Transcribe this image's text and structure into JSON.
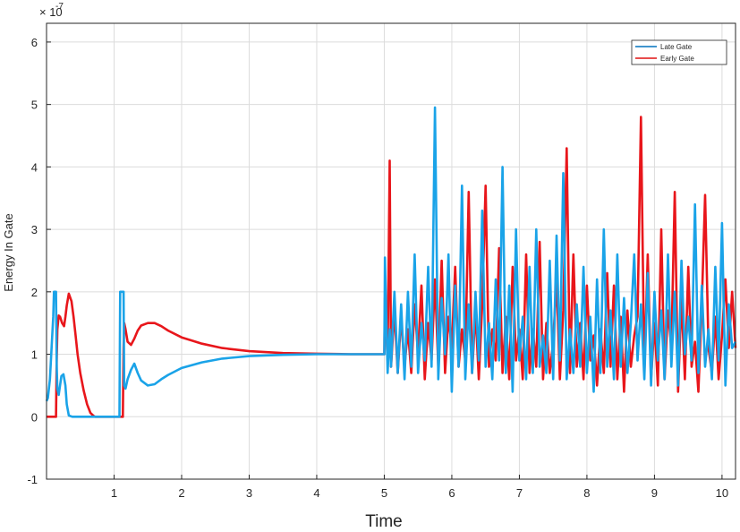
{
  "chart_data": {
    "type": "line",
    "title": "",
    "xlabel": "Time",
    "ylabel": "Energy In Gate",
    "exponent_base": "× 10",
    "exponent_power": "-7",
    "xlim": [
      0,
      10.2
    ],
    "ylim": [
      -1,
      6.3
    ],
    "xticks": [
      1,
      2,
      3,
      4,
      5,
      6,
      7,
      8,
      9,
      10
    ],
    "yticks": [
      -1,
      0,
      1,
      2,
      3,
      4,
      5,
      6
    ],
    "grid": true,
    "legend_position": "top-right",
    "legend": [
      {
        "name": "Late Gate",
        "color": "#0072BD"
      },
      {
        "name": "Early Gate",
        "color": "#E01010"
      }
    ],
    "series": [
      {
        "name": "Early Gate",
        "color": "#E8161B",
        "x": [
          0,
          0.14,
          0.15,
          0.16,
          0.18,
          0.2,
          0.23,
          0.26,
          0.28,
          0.3,
          0.33,
          0.37,
          0.4,
          0.43,
          0.46,
          0.5,
          0.55,
          0.6,
          0.65,
          0.7,
          0.72,
          0.74,
          1.13,
          1.14,
          1.15,
          1.17,
          1.2,
          1.25,
          1.3,
          1.35,
          1.4,
          1.5,
          1.6,
          1.7,
          1.8,
          2.0,
          2.3,
          2.6,
          3.0,
          3.5,
          4.0,
          4.5,
          5.0,
          5.01,
          5.05,
          5.08,
          5.1,
          5.15,
          5.2,
          5.25,
          5.3,
          5.35,
          5.4,
          5.45,
          5.5,
          5.55,
          5.6,
          5.65,
          5.7,
          5.75,
          5.8,
          5.85,
          5.9,
          5.95,
          6.0,
          6.05,
          6.1,
          6.15,
          6.2,
          6.25,
          6.3,
          6.35,
          6.4,
          6.45,
          6.5,
          6.55,
          6.6,
          6.65,
          6.7,
          6.75,
          6.8,
          6.85,
          6.9,
          6.95,
          7.0,
          7.05,
          7.1,
          7.15,
          7.2,
          7.25,
          7.3,
          7.35,
          7.4,
          7.45,
          7.5,
          7.55,
          7.6,
          7.65,
          7.7,
          7.75,
          7.8,
          7.85,
          7.9,
          7.95,
          8.0,
          8.05,
          8.1,
          8.15,
          8.2,
          8.25,
          8.3,
          8.35,
          8.4,
          8.45,
          8.5,
          8.55,
          8.6,
          8.65,
          8.7,
          8.75,
          8.8,
          8.85,
          8.9,
          8.95,
          9.0,
          9.05,
          9.1,
          9.15,
          9.2,
          9.25,
          9.3,
          9.35,
          9.4,
          9.45,
          9.5,
          9.55,
          9.6,
          9.65,
          9.7,
          9.75,
          9.8,
          9.85,
          9.9,
          9.95,
          10.0,
          10.05,
          10.1,
          10.15,
          10.2
        ],
        "y": [
          0,
          0,
          0.85,
          1.4,
          1.62,
          1.6,
          1.5,
          1.45,
          1.6,
          1.78,
          1.97,
          1.85,
          1.6,
          1.3,
          1.0,
          0.7,
          0.42,
          0.2,
          0.06,
          0.01,
          0,
          0,
          0,
          1.1,
          1.5,
          1.4,
          1.2,
          1.15,
          1.25,
          1.38,
          1.46,
          1.5,
          1.5,
          1.45,
          1.38,
          1.27,
          1.17,
          1.1,
          1.05,
          1.02,
          1.01,
          1.0,
          1.0,
          1.9,
          0.9,
          4.1,
          0.8,
          1.7,
          0.7,
          1.6,
          0.8,
          1.4,
          0.7,
          1.8,
          1.0,
          2.1,
          0.6,
          1.5,
          0.9,
          2.2,
          0.8,
          2.5,
          0.7,
          1.6,
          1.1,
          2.4,
          0.8,
          1.4,
          0.9,
          3.6,
          0.7,
          1.7,
          0.6,
          1.8,
          3.7,
          0.8,
          1.4,
          0.9,
          2.7,
          0.7,
          1.6,
          0.6,
          2.4,
          0.9,
          1.4,
          0.6,
          2.6,
          0.7,
          1.4,
          0.8,
          2.8,
          0.6,
          1.5,
          0.7,
          1.2,
          2.2,
          0.6,
          1.7,
          4.3,
          0.7,
          2.6,
          0.8,
          1.5,
          0.6,
          2.1,
          0.9,
          1.3,
          0.5,
          1.4,
          0.7,
          2.3,
          0.8,
          2.1,
          0.6,
          1.6,
          0.4,
          1.7,
          0.8,
          1.3,
          1.6,
          4.8,
          0.7,
          2.6,
          0.6,
          1.5,
          0.5,
          3.0,
          0.6,
          1.7,
          1.1,
          3.6,
          0.4,
          1.9,
          0.6,
          2.4,
          0.8,
          1.2,
          0.4,
          1.8,
          3.55,
          1.1,
          0.7,
          1.6,
          0.6,
          1.3,
          2.2,
          1.1,
          2.0,
          1.1
        ]
      },
      {
        "name": "Late Gate",
        "color": "#1AA3E8",
        "x": [
          0,
          0.02,
          0.05,
          0.08,
          0.1,
          0.11,
          0.12,
          0.14,
          0.15,
          0.16,
          0.18,
          0.2,
          0.22,
          0.25,
          0.28,
          0.3,
          0.33,
          0.38,
          0.42,
          1.08,
          1.09,
          1.1,
          1.12,
          1.14,
          1.15,
          1.17,
          1.2,
          1.25,
          1.3,
          1.35,
          1.4,
          1.5,
          1.6,
          1.7,
          1.8,
          2.0,
          2.3,
          2.6,
          3.0,
          3.5,
          4.0,
          4.5,
          5.0,
          5.01,
          5.05,
          5.08,
          5.1,
          5.15,
          5.2,
          5.25,
          5.3,
          5.35,
          5.4,
          5.45,
          5.5,
          5.55,
          5.6,
          5.65,
          5.7,
          5.75,
          5.8,
          5.85,
          5.9,
          5.95,
          6.0,
          6.05,
          6.1,
          6.15,
          6.2,
          6.25,
          6.3,
          6.35,
          6.4,
          6.45,
          6.5,
          6.55,
          6.6,
          6.65,
          6.7,
          6.75,
          6.8,
          6.85,
          6.9,
          6.95,
          7.0,
          7.05,
          7.1,
          7.15,
          7.2,
          7.25,
          7.3,
          7.35,
          7.4,
          7.45,
          7.5,
          7.55,
          7.6,
          7.65,
          7.7,
          7.75,
          7.8,
          7.85,
          7.9,
          7.95,
          8.0,
          8.05,
          8.1,
          8.15,
          8.2,
          8.25,
          8.3,
          8.35,
          8.4,
          8.45,
          8.5,
          8.55,
          8.6,
          8.65,
          8.7,
          8.75,
          8.8,
          8.85,
          8.9,
          8.95,
          9.0,
          9.05,
          9.1,
          9.15,
          9.2,
          9.25,
          9.3,
          9.35,
          9.4,
          9.45,
          9.5,
          9.55,
          9.6,
          9.65,
          9.7,
          9.75,
          9.8,
          9.85,
          9.9,
          9.95,
          10.0,
          10.05,
          10.1,
          10.15,
          10.2
        ],
        "y": [
          0.25,
          0.3,
          0.6,
          1.2,
          1.6,
          2.0,
          2.0,
          2.0,
          0.85,
          0.45,
          0.35,
          0.5,
          0.65,
          0.68,
          0.5,
          0.2,
          0.02,
          0,
          0,
          0,
          2.0,
          2.0,
          2.0,
          2.0,
          0.5,
          0.45,
          0.6,
          0.75,
          0.85,
          0.7,
          0.58,
          0.5,
          0.52,
          0.6,
          0.67,
          0.78,
          0.87,
          0.93,
          0.97,
          0.99,
          1.0,
          1.0,
          1.0,
          2.55,
          0.7,
          1.4,
          0.8,
          2.0,
          0.7,
          1.8,
          0.6,
          2.0,
          0.8,
          2.6,
          0.7,
          1.5,
          0.9,
          2.4,
          0.8,
          4.95,
          0.6,
          1.9,
          1.0,
          2.6,
          0.4,
          2.1,
          0.8,
          3.7,
          0.6,
          1.8,
          0.7,
          2.0,
          0.9,
          3.3,
          0.8,
          1.5,
          0.6,
          2.2,
          0.9,
          4.0,
          0.7,
          2.1,
          0.4,
          3.0,
          0.9,
          1.6,
          0.6,
          2.4,
          0.7,
          3.0,
          0.8,
          1.3,
          0.7,
          2.5,
          0.6,
          2.9,
          0.9,
          3.9,
          0.6,
          1.4,
          0.7,
          1.8,
          0.8,
          2.4,
          0.7,
          1.6,
          0.4,
          2.2,
          0.7,
          3.0,
          0.8,
          1.7,
          0.6,
          2.6,
          0.8,
          1.9,
          0.7,
          1.5,
          2.6,
          0.9,
          1.8,
          0.6,
          2.3,
          0.5,
          2.0,
          0.9,
          1.7,
          0.6,
          2.6,
          0.8,
          2.0,
          0.5,
          2.5,
          1.0,
          1.6,
          0.9,
          3.4,
          0.7,
          2.1,
          0.8,
          1.4,
          0.6,
          2.4,
          0.9,
          3.1,
          0.5,
          1.8,
          1.1,
          1.2
        ]
      }
    ]
  }
}
